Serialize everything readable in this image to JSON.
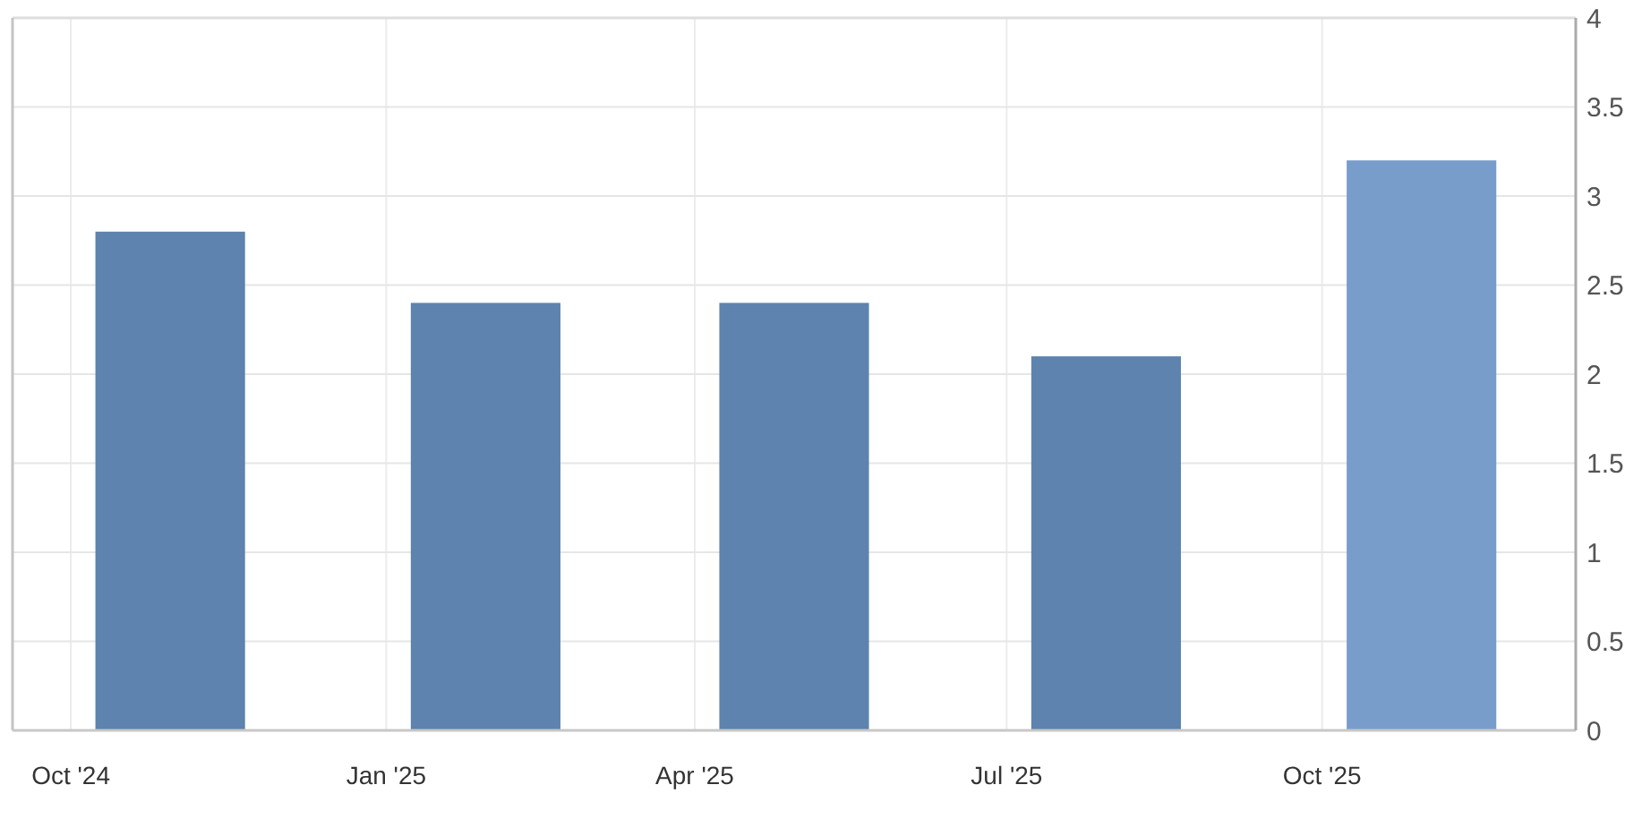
{
  "chart_data": {
    "type": "bar",
    "x": [
      "2024-10-30",
      "2025-01-30",
      "2025-04-30",
      "2025-07-30",
      "2025-10-30"
    ],
    "values": [
      2.8,
      2.4,
      2.4,
      2.1,
      3.2
    ],
    "colors": [
      "#5d83ae",
      "#5d83ae",
      "#5d83ae",
      "#5d83ae",
      "#789dca"
    ],
    "xlim": [
      "2024-09-14",
      "2025-12-14"
    ],
    "xticks": [
      {
        "value": "2024-10-01",
        "label": "Oct '24"
      },
      {
        "value": "2025-01-01",
        "label": "Jan '25"
      },
      {
        "value": "2025-04-01",
        "label": "Apr '25"
      },
      {
        "value": "2025-07-01",
        "label": "Jul '25"
      },
      {
        "value": "2025-10-01",
        "label": "Oct '25"
      }
    ],
    "ylim": [
      0,
      4
    ],
    "yticks": [
      0,
      0.5,
      1,
      1.5,
      2,
      2.5,
      3,
      3.5,
      4
    ],
    "grid": true
  }
}
